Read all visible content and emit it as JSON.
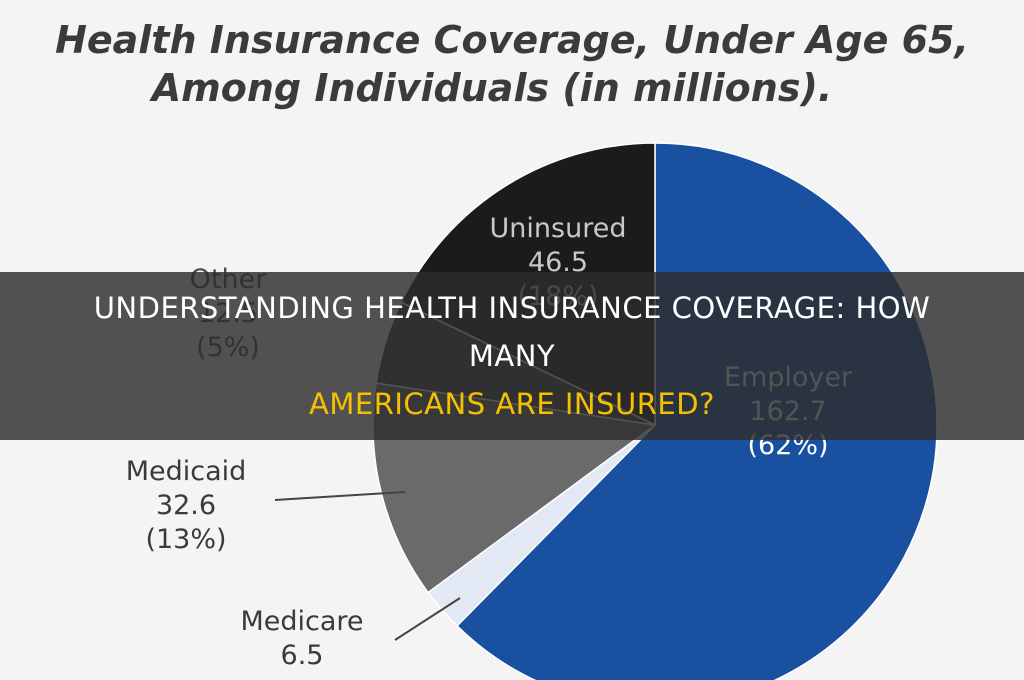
{
  "chart_data": {
    "type": "pie",
    "title_lines": [
      "Health Insurance Coverage, Under Age 65,",
      "Among Individuals (in millions)."
    ],
    "slices": [
      {
        "label": "Employer",
        "value": 162.7,
        "percent": "(62%)",
        "color": "#1a50a0"
      },
      {
        "label": "Medicare",
        "value": 6.5,
        "percent": "",
        "color": "#e2e8f4"
      },
      {
        "label": "Medicaid",
        "value": 32.6,
        "percent": "(13%)",
        "color": "#6a6a6a"
      },
      {
        "label": "Other",
        "value": 12.5,
        "percent": "(5%)",
        "color": "#404040"
      },
      {
        "label": "Uninsured",
        "value": 46.5,
        "percent": "(18%)",
        "color": "#1c1a1a"
      }
    ],
    "start_angle_deg": 0,
    "direction": "clockwise"
  },
  "banner": {
    "title_white": "Understanding Health Insurance Coverage: How Many",
    "title_yellow": "Americans Are Insured?"
  }
}
